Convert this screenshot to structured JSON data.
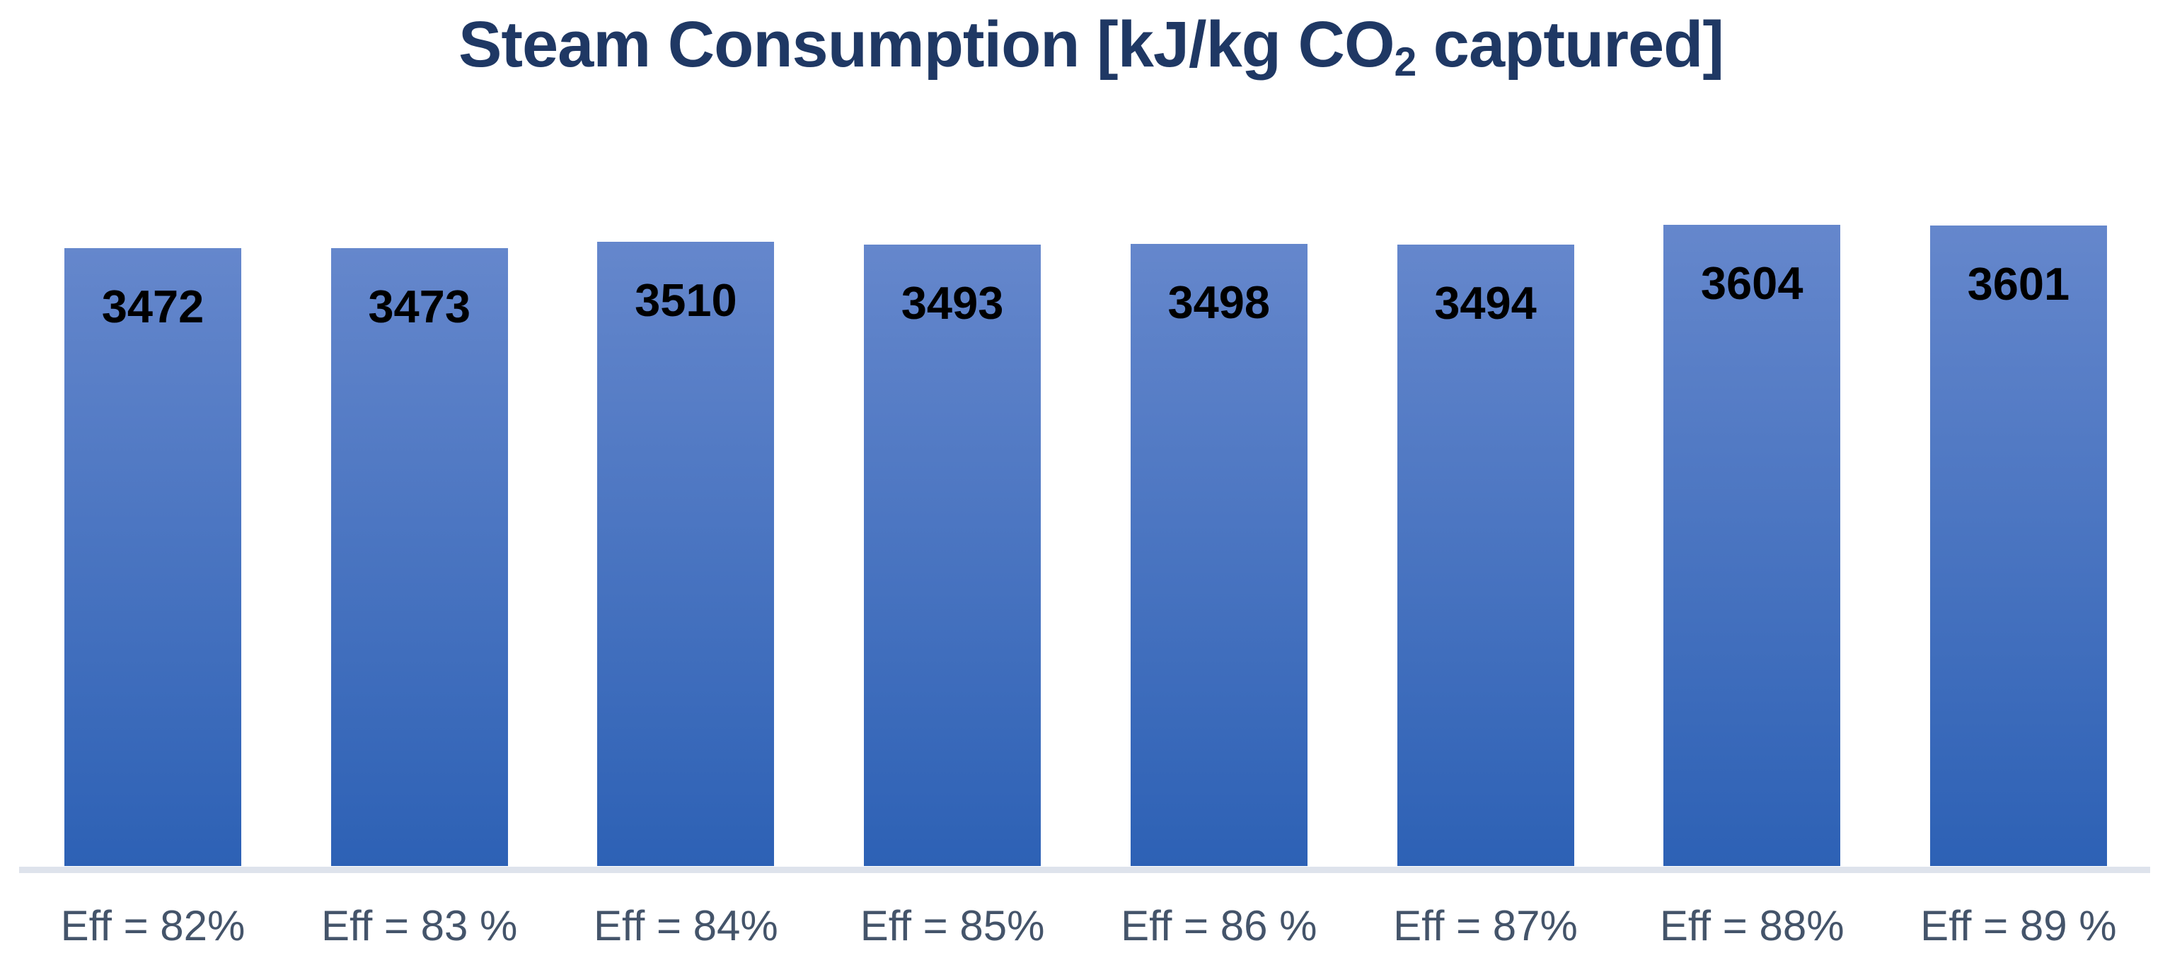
{
  "chart_data": {
    "type": "bar",
    "title": "Steam Consumption [kJ/kg CO2 captured]",
    "title_parts": {
      "pre": "Steam Consumption [kJ/kg CO",
      "sub": "2",
      "post": " captured]"
    },
    "categories": [
      "Eff = 82%",
      "Eff = 83 %",
      "Eff = 84%",
      "Eff = 85%",
      "Eff = 86 %",
      "Eff = 87%",
      "Eff = 88%",
      "Eff = 89 %"
    ],
    "values": [
      3472,
      3473,
      3510,
      3493,
      3498,
      3494,
      3604,
      3601
    ],
    "series": [
      {
        "name": "Steam Consumption [kJ/kg CO2 captured]",
        "values": [
          3472,
          3473,
          3510,
          3493,
          3498,
          3494,
          3604,
          3601
        ]
      }
    ],
    "xlabel": "",
    "ylabel": "",
    "ylim": [
      0,
      4350
    ],
    "y_axis_visible": false,
    "x_axis_visible": true,
    "gridlines": false,
    "legend": "none",
    "data_labels_position": "inside_end",
    "colors": {
      "bar_gradient_top": "#6587CC",
      "bar_gradient_bottom": "#2D61B5",
      "title_color": "#1F3864",
      "data_label_color": "#000000",
      "category_label_color": "#44546A",
      "axis_line_color": "#DEE3EC",
      "background": "#FFFFFF"
    }
  }
}
